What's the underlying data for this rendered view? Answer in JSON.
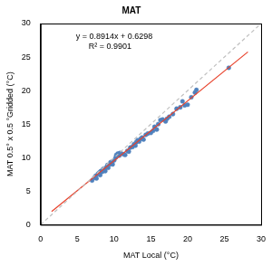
{
  "chart_data": {
    "type": "scatter",
    "title": "MAT",
    "x_label": "MAT Local (°C)",
    "y_label": "MAT 0.5° x 0.5 °Gridded (°C)",
    "xlim": [
      0,
      30
    ],
    "ylim": [
      0,
      30
    ],
    "xticks": [
      0,
      5,
      10,
      15,
      20,
      25,
      30
    ],
    "yticks": [
      0,
      5,
      10,
      15,
      20,
      25,
      30
    ],
    "grid": false,
    "annotations": [
      "y = 0.8914x + 0.6298",
      "R² = 0.9901"
    ],
    "series": [
      {
        "type": "line",
        "color": "#bfbfbf",
        "marker": "none",
        "line_style": "dashed",
        "x": [
          0,
          30
        ],
        "values": [
          0,
          30
        ]
      },
      {
        "type": "line",
        "color": "#e8402a",
        "marker": "none",
        "line_style": "solid",
        "x": [
          1.5,
          28.2
        ],
        "values": [
          1.97,
          25.77
        ]
      },
      {
        "type": "scatter",
        "color": "#4f81bd",
        "marker": "circle",
        "x": [
          7.0,
          7.3,
          7.5,
          7.6,
          7.8,
          8.0,
          8.1,
          8.2,
          8.4,
          8.5,
          8.7,
          8.8,
          9.0,
          9.1,
          9.2,
          9.4,
          9.5,
          9.7,
          9.8,
          10.0,
          10.2,
          10.3,
          10.5,
          10.7,
          10.8,
          11.0,
          11.3,
          11.5,
          11.8,
          12.0,
          12.2,
          12.5,
          12.7,
          12.9,
          13.0,
          13.2,
          13.4,
          13.6,
          13.8,
          14.0,
          14.3,
          14.6,
          15.0,
          15.3,
          15.5,
          15.8,
          16.0,
          16.3,
          16.6,
          17.0,
          17.2,
          17.5,
          18.0,
          18.5,
          19.0,
          19.3,
          19.6,
          20.0,
          20.5,
          21.0,
          21.2,
          25.6
        ],
        "values": [
          6.6,
          7.0,
          7.3,
          6.9,
          7.6,
          7.8,
          7.4,
          8.0,
          7.9,
          8.3,
          8.4,
          8.0,
          8.6,
          8.9,
          8.5,
          9.0,
          9.3,
          9.4,
          9.0,
          9.6,
          10.0,
          10.4,
          10.6,
          10.3,
          10.7,
          10.6,
          10.5,
          10.4,
          11.0,
          10.9,
          11.5,
          11.6,
          12.0,
          11.8,
          12.3,
          12.6,
          12.4,
          12.8,
          13.0,
          12.7,
          13.4,
          13.6,
          13.7,
          14.0,
          14.6,
          14.2,
          15.0,
          15.6,
          15.7,
          15.4,
          15.8,
          16.1,
          16.5,
          17.3,
          17.5,
          18.4,
          17.8,
          17.9,
          19.0,
          19.7,
          20.1,
          23.4
        ]
      }
    ]
  }
}
